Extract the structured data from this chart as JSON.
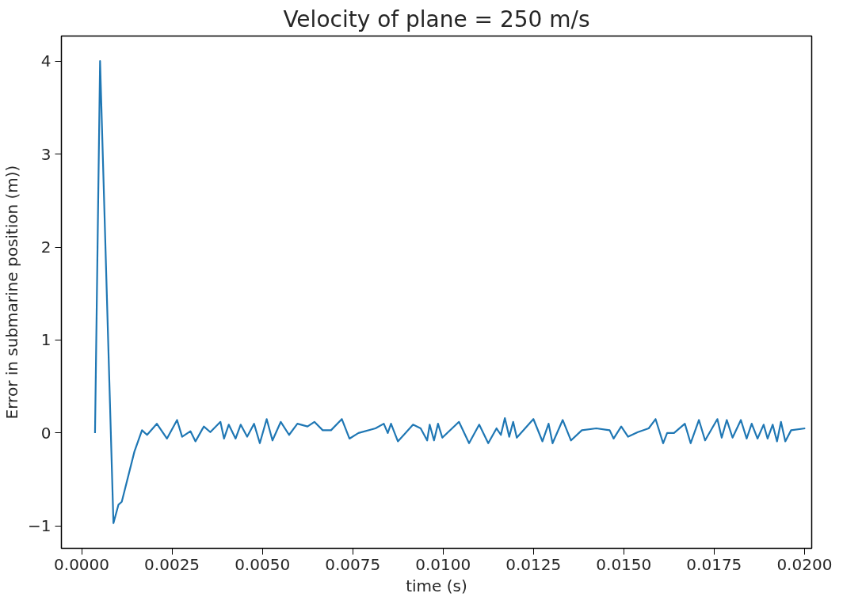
{
  "chart_data": {
    "type": "line",
    "title": "Velocity of plane = 250 m/s",
    "xlabel": "time (s)",
    "ylabel": "Error in submarine position (m))",
    "xlim": [
      -0.00056,
      0.0202
    ],
    "ylim": [
      -1.24,
      4.27
    ],
    "xticks": [
      {
        "value": 0,
        "label": "0.0000"
      },
      {
        "value": 0.0025,
        "label": "0.0025"
      },
      {
        "value": 0.005,
        "label": "0.0050"
      },
      {
        "value": 0.0075,
        "label": "0.0075"
      },
      {
        "value": 0.01,
        "label": "0.0100"
      },
      {
        "value": 0.0125,
        "label": "0.0125"
      },
      {
        "value": 0.015,
        "label": "0.0150"
      },
      {
        "value": 0.0175,
        "label": "0.0175"
      },
      {
        "value": 0.02,
        "label": "0.0200"
      }
    ],
    "yticks": [
      {
        "value": -1,
        "label": "−1"
      },
      0,
      1,
      2,
      3,
      4
    ],
    "line_style": "solid",
    "series": [
      {
        "color": "#1f77b4",
        "x": [
          0.00037,
          0.00051,
          0.00088,
          0.00102,
          0.00111,
          0.00146,
          0.00167,
          0.00181,
          0.00208,
          0.00236,
          0.00264,
          0.00278,
          0.00301,
          0.00315,
          0.00338,
          0.00356,
          0.00384,
          0.00394,
          0.00407,
          0.00426,
          0.0044,
          0.00458,
          0.00477,
          0.00493,
          0.00512,
          0.00528,
          0.00551,
          0.00574,
          0.00597,
          0.00625,
          0.00644,
          0.00667,
          0.0069,
          0.0072,
          0.00741,
          0.00766,
          0.00813,
          0.00836,
          0.00847,
          0.00856,
          0.00875,
          0.00917,
          0.00938,
          0.00956,
          0.00963,
          0.00975,
          0.00986,
          0.00998,
          0.01044,
          0.01072,
          0.011,
          0.01125,
          0.01148,
          0.0116,
          0.01171,
          0.01183,
          0.01194,
          0.01204,
          0.0125,
          0.01275,
          0.01292,
          0.01303,
          0.01331,
          0.01354,
          0.01384,
          0.01424,
          0.01461,
          0.01472,
          0.01493,
          0.01512,
          0.01539,
          0.01569,
          0.01588,
          0.01609,
          0.0162,
          0.01639,
          0.01669,
          0.01685,
          0.01708,
          0.01725,
          0.01759,
          0.01771,
          0.01785,
          0.01801,
          0.01824,
          0.0184,
          0.01854,
          0.0187,
          0.01887,
          0.01898,
          0.01912,
          0.01924,
          0.01935,
          0.01947,
          0.01963,
          0.02002
        ],
        "values": [
          0,
          4.0,
          -0.97,
          -0.77,
          -0.74,
          -0.2,
          0.03,
          -0.02,
          0.1,
          -0.06,
          0.14,
          -0.04,
          0.02,
          -0.09,
          0.07,
          0.01,
          0.12,
          -0.06,
          0.09,
          -0.06,
          0.09,
          -0.04,
          0.1,
          -0.11,
          0.15,
          -0.08,
          0.12,
          -0.02,
          0.1,
          0.07,
          0.12,
          0.03,
          0.03,
          0.15,
          -0.06,
          0,
          0.05,
          0.1,
          0,
          0.1,
          -0.09,
          0.09,
          0.05,
          -0.08,
          0.09,
          -0.08,
          0.1,
          -0.05,
          0.12,
          -0.11,
          0.09,
          -0.11,
          0.05,
          -0.02,
          0.16,
          -0.04,
          0.12,
          -0.05,
          0.15,
          -0.09,
          0.1,
          -0.11,
          0.14,
          -0.08,
          0.03,
          0.05,
          0.03,
          -0.06,
          0.07,
          -0.04,
          0.01,
          0.05,
          0.15,
          -0.11,
          0,
          0,
          0.1,
          -0.11,
          0.14,
          -0.08,
          0.15,
          -0.05,
          0.14,
          -0.05,
          0.14,
          -0.06,
          0.1,
          -0.06,
          0.09,
          -0.06,
          0.09,
          -0.09,
          0.12,
          -0.09,
          0.03,
          0.05
        ]
      }
    ]
  }
}
